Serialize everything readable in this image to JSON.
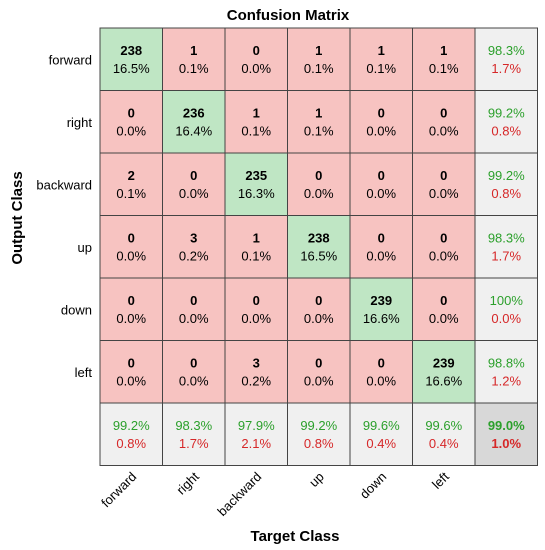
{
  "chart_data": {
    "type": "heatmap",
    "title": "Confusion Matrix",
    "xlabel": "Target Class",
    "ylabel": "Output Class",
    "row_labels": [
      "forward",
      "right",
      "backward",
      "up",
      "down",
      "left"
    ],
    "col_labels": [
      "forward",
      "right",
      "backward",
      "up",
      "down",
      "left"
    ],
    "counts": [
      [
        238,
        1,
        0,
        1,
        1,
        1
      ],
      [
        0,
        236,
        1,
        1,
        0,
        0
      ],
      [
        2,
        0,
        235,
        0,
        0,
        0
      ],
      [
        0,
        3,
        1,
        238,
        0,
        0
      ],
      [
        0,
        0,
        0,
        0,
        239,
        0
      ],
      [
        0,
        0,
        3,
        0,
        0,
        239
      ]
    ],
    "percents": [
      [
        "16.5%",
        "0.1%",
        "0.0%",
        "0.1%",
        "0.1%",
        "0.1%"
      ],
      [
        "0.0%",
        "16.4%",
        "0.1%",
        "0.1%",
        "0.0%",
        "0.0%"
      ],
      [
        "0.1%",
        "0.0%",
        "16.3%",
        "0.0%",
        "0.0%",
        "0.0%"
      ],
      [
        "0.0%",
        "0.2%",
        "0.1%",
        "16.5%",
        "0.0%",
        "0.0%"
      ],
      [
        "0.0%",
        "0.0%",
        "0.0%",
        "0.0%",
        "16.6%",
        "0.0%"
      ],
      [
        "0.0%",
        "0.0%",
        "0.2%",
        "0.0%",
        "0.0%",
        "16.6%"
      ]
    ],
    "row_summary": [
      {
        "correct": "98.3%",
        "error": "1.7%"
      },
      {
        "correct": "99.2%",
        "error": "0.8%"
      },
      {
        "correct": "99.2%",
        "error": "0.8%"
      },
      {
        "correct": "98.3%",
        "error": "1.7%"
      },
      {
        "correct": "100%",
        "error": "0.0%"
      },
      {
        "correct": "98.8%",
        "error": "1.2%"
      }
    ],
    "col_summary": [
      {
        "correct": "99.2%",
        "error": "0.8%"
      },
      {
        "correct": "98.3%",
        "error": "1.7%"
      },
      {
        "correct": "97.9%",
        "error": "2.1%"
      },
      {
        "correct": "99.2%",
        "error": "0.8%"
      },
      {
        "correct": "99.6%",
        "error": "0.4%"
      },
      {
        "correct": "99.6%",
        "error": "0.4%"
      }
    ],
    "overall": {
      "correct": "99.0%",
      "error": "1.0%"
    },
    "colors": {
      "diagonal": "#bfe6c4",
      "off_diagonal": "#f7c3c1",
      "summary": "#f0f0f0",
      "overall": "#d8d8d8",
      "correct_text": "#2ca02c",
      "error_text": "#d62728",
      "grid": "#444444"
    }
  }
}
